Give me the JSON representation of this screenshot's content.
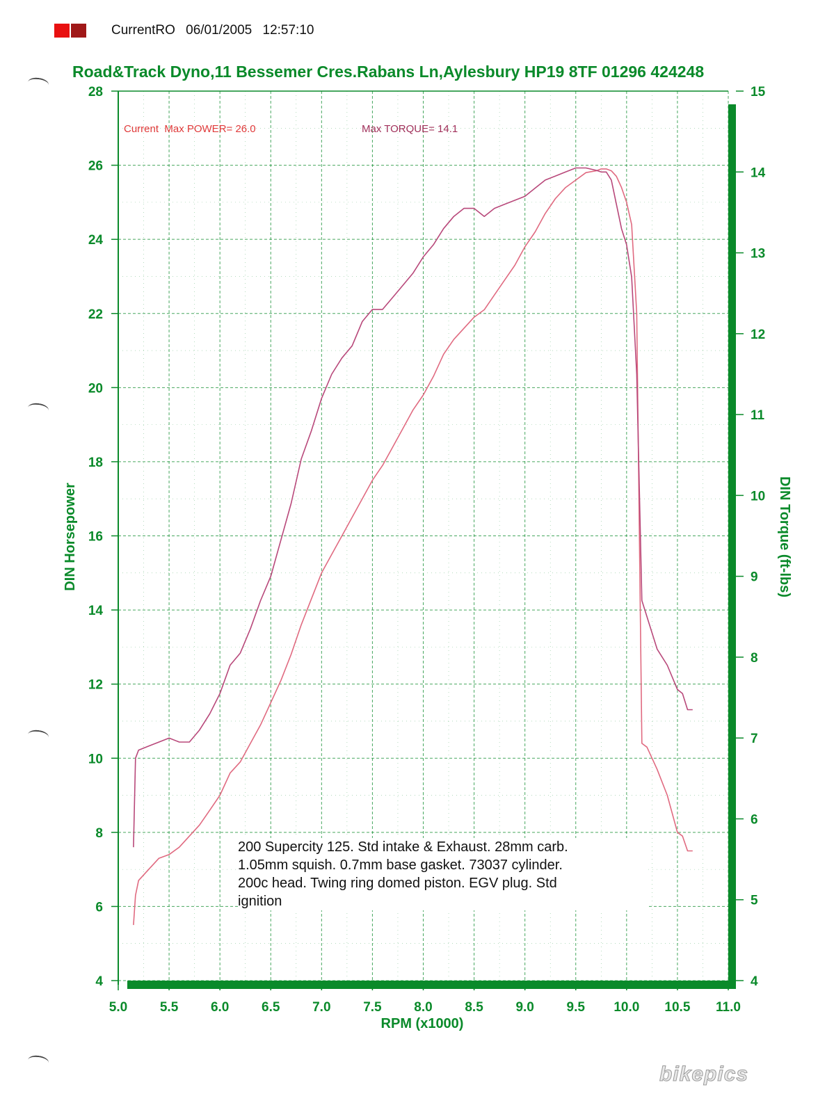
{
  "header": {
    "run_name": "CurrentRO",
    "date": "06/01/2005",
    "time": "12:57:10",
    "swatch_colors": [
      "#e81010",
      "#a01818"
    ]
  },
  "chart_data": {
    "type": "line",
    "title": "Road&Track Dyno,11 Bessemer Cres.Rabans Ln,Aylesbury HP19 8TF 01296 424248",
    "xlabel": "RPM (x1000)",
    "ylabel": "DIN Horsepower",
    "y2label": "DIN Torque (ft-lbs)",
    "xlim": [
      5.0,
      11.0
    ],
    "ylim": [
      4,
      28
    ],
    "y2lim": [
      4,
      15
    ],
    "x_ticks": [
      "5.0",
      "5.5",
      "6.0",
      "6.5",
      "7.0",
      "7.5",
      "8.0",
      "8.5",
      "9.0",
      "9.5",
      "10.0",
      "10.5",
      "11.0"
    ],
    "y_ticks": [
      "4",
      "6",
      "8",
      "10",
      "12",
      "14",
      "16",
      "18",
      "20",
      "22",
      "24",
      "26",
      "28"
    ],
    "y2_ticks": [
      "4",
      "5",
      "6",
      "7",
      "8",
      "9",
      "10",
      "11",
      "12",
      "13",
      "14",
      "15"
    ],
    "grid": true,
    "axis_color": "#0a8a2a",
    "annotations": {
      "power": "Current  Max POWER= 26.0",
      "torque": "Max TORQUE= 14.1"
    },
    "series": [
      {
        "axis": "left",
        "color": "#e06a80",
        "x": [
          5.15,
          5.17,
          5.2,
          5.3,
          5.4,
          5.5,
          5.6,
          5.7,
          5.8,
          5.9,
          6.0,
          6.1,
          6.2,
          6.3,
          6.4,
          6.5,
          6.6,
          6.7,
          6.8,
          6.9,
          7.0,
          7.1,
          7.2,
          7.3,
          7.4,
          7.5,
          7.6,
          7.7,
          7.8,
          7.9,
          8.0,
          8.1,
          8.2,
          8.3,
          8.4,
          8.5,
          8.6,
          8.7,
          8.8,
          8.9,
          9.0,
          9.1,
          9.2,
          9.3,
          9.4,
          9.5,
          9.6,
          9.7,
          9.75,
          9.8,
          9.85,
          9.9,
          9.95,
          10.0,
          10.05,
          10.1,
          10.15,
          10.2,
          10.3,
          10.4,
          10.5,
          10.55,
          10.6,
          10.65
        ],
        "y": [
          5.5,
          6.3,
          6.7,
          7.0,
          7.3,
          7.4,
          7.6,
          7.9,
          8.2,
          8.6,
          9.0,
          9.6,
          9.9,
          10.4,
          10.9,
          11.5,
          12.1,
          12.8,
          13.6,
          14.3,
          15.0,
          15.5,
          16.0,
          16.5,
          17.0,
          17.5,
          17.9,
          18.4,
          18.9,
          19.4,
          19.8,
          20.3,
          20.9,
          21.3,
          21.6,
          21.9,
          22.1,
          22.5,
          22.9,
          23.3,
          23.8,
          24.2,
          24.7,
          25.1,
          25.4,
          25.6,
          25.8,
          25.85,
          25.9,
          25.9,
          25.85,
          25.7,
          25.4,
          25.0,
          24.4,
          22.0,
          10.4,
          10.3,
          9.7,
          9.0,
          8.0,
          7.9,
          7.5,
          7.5
        ]
      },
      {
        "axis": "right",
        "color": "#b8487a",
        "x": [
          5.15,
          5.17,
          5.2,
          5.3,
          5.4,
          5.5,
          5.6,
          5.7,
          5.8,
          5.9,
          6.0,
          6.1,
          6.2,
          6.3,
          6.4,
          6.5,
          6.6,
          6.7,
          6.8,
          6.9,
          7.0,
          7.1,
          7.2,
          7.3,
          7.4,
          7.5,
          7.6,
          7.7,
          7.8,
          7.9,
          8.0,
          8.1,
          8.2,
          8.3,
          8.4,
          8.5,
          8.6,
          8.7,
          8.8,
          8.9,
          9.0,
          9.1,
          9.2,
          9.3,
          9.4,
          9.5,
          9.6,
          9.7,
          9.75,
          9.8,
          9.85,
          9.9,
          9.95,
          10.0,
          10.05,
          10.1,
          10.15,
          10.2,
          10.3,
          10.4,
          10.5,
          10.55,
          10.6,
          10.65
        ],
        "y": [
          5.65,
          6.75,
          6.85,
          6.9,
          6.95,
          7.0,
          6.95,
          6.95,
          7.1,
          7.3,
          7.55,
          7.9,
          8.05,
          8.35,
          8.7,
          9.0,
          9.45,
          9.9,
          10.45,
          10.8,
          11.2,
          11.5,
          11.7,
          11.85,
          12.15,
          12.3,
          12.3,
          12.45,
          12.6,
          12.75,
          12.95,
          13.1,
          13.3,
          13.45,
          13.55,
          13.55,
          13.45,
          13.55,
          13.6,
          13.65,
          13.7,
          13.8,
          13.9,
          13.95,
          14.0,
          14.05,
          14.05,
          14.02,
          14.0,
          14.0,
          13.9,
          13.6,
          13.3,
          13.1,
          12.7,
          11.5,
          8.7,
          8.5,
          8.1,
          7.9,
          7.6,
          7.55,
          7.35,
          7.35
        ]
      }
    ],
    "note": [
      "200 Supercity 125. Std intake & Exhaust. 28mm carb.",
      "1.05mm squish. 0.7mm base gasket. 73037 cylinder.",
      "200c head. Twing ring domed piston. EGV plug. Std",
      "ignition"
    ]
  },
  "watermark": "bikepics"
}
